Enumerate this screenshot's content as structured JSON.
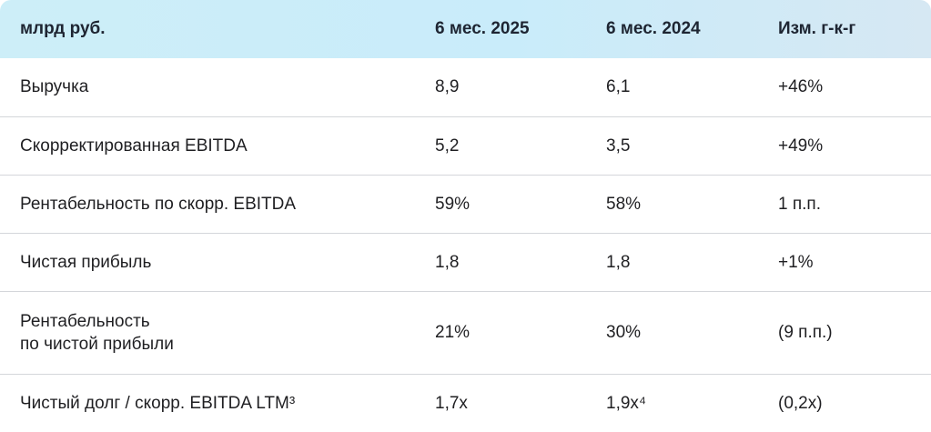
{
  "header": {
    "col_label": "млрд руб.",
    "col_2025": "6 мес. 2025",
    "col_2024": "6 мес. 2024",
    "col_change": "Изм. г-к-г"
  },
  "rows": [
    {
      "label": "Выручка",
      "v2025": "8,9",
      "v2024": "6,1",
      "change": "+46%"
    },
    {
      "label": "Скорректированная EBITDA",
      "v2025": "5,2",
      "v2024": "3,5",
      "change": "+49%"
    },
    {
      "label": "Рентабельность по скорр. EBITDA",
      "v2025": "59%",
      "v2024": "58%",
      "change": "1 п.п."
    },
    {
      "label": "Чистая прибыль",
      "v2025": "1,8",
      "v2024": "1,8",
      "change": "+1%"
    },
    {
      "label_line1": "Рентабельность",
      "label_line2": "по чистой прибыли",
      "v2025": "21%",
      "v2024": "30%",
      "change": "(9 п.п.)"
    },
    {
      "label": "Чистый долг / скорр. EBITDA LTM³",
      "v2025": "1,7x",
      "v2024": "1,9x⁴",
      "change": "(0,2x)"
    }
  ]
}
